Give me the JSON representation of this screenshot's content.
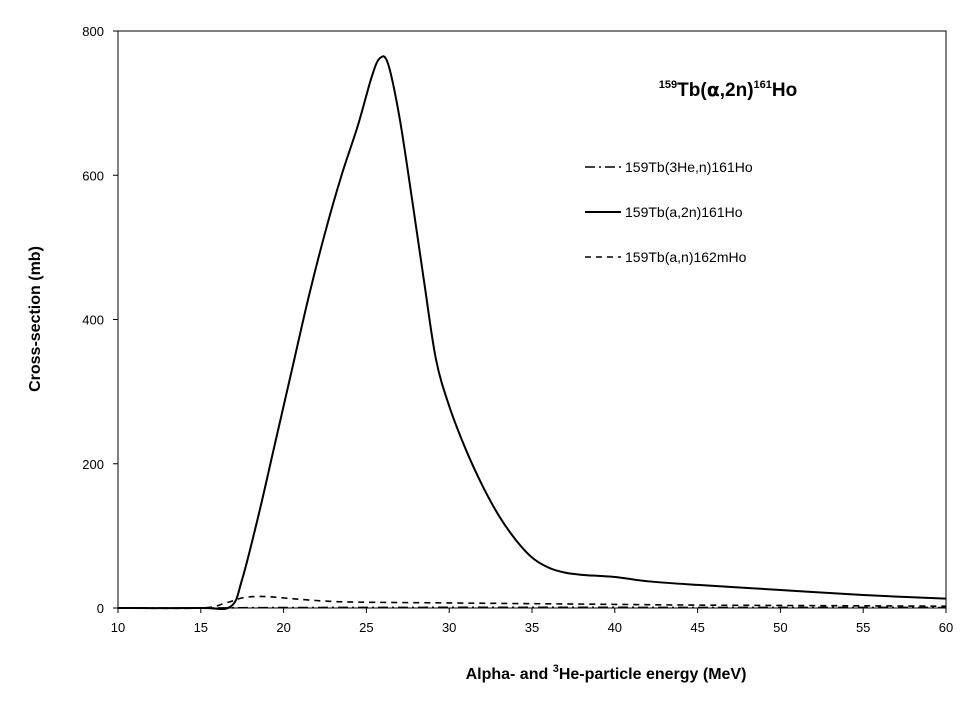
{
  "chart_data": {
    "type": "line",
    "title": {
      "pre_sup": "159",
      "main1": "Tb(",
      "greek": "α",
      "main2": ",2n)",
      "mid_sup": "161",
      "main3": "Ho"
    },
    "xlabel": {
      "part1": "Alpha- and ",
      "sup": "3",
      "part2": "He-particle energy (MeV)"
    },
    "ylabel": "Cross-section (mb)",
    "xlim": [
      10,
      60
    ],
    "ylim": [
      0,
      800
    ],
    "xticks": [
      10,
      15,
      20,
      25,
      30,
      35,
      40,
      45,
      50,
      55,
      60
    ],
    "yticks": [
      0,
      200,
      400,
      600,
      800
    ],
    "grid": false,
    "legend_position": "top-right",
    "series": [
      {
        "name": "159Tb(3He,n)161Ho",
        "style": "dash-dot",
        "color": "#000000",
        "x": [
          10,
          15,
          17,
          20,
          25,
          30,
          35,
          40,
          45,
          50,
          55,
          60
        ],
        "y": [
          0,
          0,
          0.3,
          0.6,
          0.8,
          0.9,
          0.9,
          0.9,
          0.8,
          0.8,
          0.8,
          0.7
        ]
      },
      {
        "name": "159Tb(a,2n)161Ho",
        "style": "solid",
        "color": "#000000",
        "x": [
          10,
          15,
          16.8,
          17.5,
          18.5,
          19.5,
          20.5,
          21.5,
          22.5,
          23.5,
          24.5,
          25.3,
          25.8,
          26.3,
          27,
          27.8,
          28.5,
          29.2,
          30,
          31,
          32,
          33,
          34,
          35,
          36,
          37,
          38,
          40,
          42,
          45,
          50,
          55,
          60
        ],
        "y": [
          0,
          0,
          2,
          40,
          130,
          230,
          330,
          430,
          520,
          600,
          670,
          735,
          762,
          755,
          680,
          560,
          450,
          345,
          280,
          220,
          170,
          128,
          95,
          70,
          56,
          49,
          46,
          43,
          37,
          32,
          25,
          18,
          13
        ]
      },
      {
        "name": "159Tb(a,n)162mHo",
        "style": "dashed",
        "color": "#000000",
        "x": [
          10,
          15,
          16.5,
          17.5,
          18.5,
          19.5,
          21,
          23,
          25,
          30,
          35,
          40,
          45,
          50,
          55,
          60
        ],
        "y": [
          0,
          0,
          7,
          14,
          16,
          15,
          12,
          9,
          8,
          7,
          6,
          5,
          4,
          3.5,
          3,
          2.5
        ]
      }
    ]
  }
}
